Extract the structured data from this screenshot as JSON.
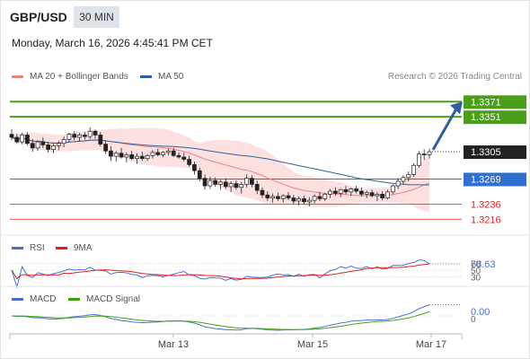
{
  "header": {
    "symbol": "GBP/USD",
    "timeframe": "30 MIN",
    "datetime": "Monday, March 16, 2026 4:45:41 PM CET",
    "credit": "Research © 2026 Trading Central"
  },
  "legends": {
    "bollinger": {
      "label": "MA 20 + Bollinger Bands",
      "color": "#f08080"
    },
    "ma50": {
      "label": "MA 50",
      "color": "#2f5f9f"
    },
    "rsi": {
      "label": "RSI",
      "color": "#4a6fd0"
    },
    "rsi_ma": {
      "label": "9MA",
      "color": "#e02020"
    },
    "macd": {
      "label": "MACD",
      "color": "#4a6fd0"
    },
    "macd_signal": {
      "label": "MACD Signal",
      "color": "#44a015"
    }
  },
  "price_levels": [
    {
      "label": "1.3371",
      "value": 1.3371,
      "kind": "resistance",
      "color": "#4a9e1a"
    },
    {
      "label": "1.3351",
      "value": 1.3351,
      "kind": "resistance",
      "color": "#4a9e1a"
    },
    {
      "label": "1.3305",
      "value": 1.3305,
      "kind": "current",
      "color": "#333333"
    },
    {
      "label": "1.3269",
      "value": 1.3269,
      "kind": "pivot",
      "color": "#2f6fcf"
    },
    {
      "label": "1.3236",
      "value": 1.3236,
      "kind": "support",
      "color": "#e02020"
    },
    {
      "label": "1.3216",
      "value": 1.3216,
      "kind": "support",
      "color": "#e02020"
    }
  ],
  "rsi_panel": {
    "value_label": "68.63",
    "value": 68.63,
    "level_70": "70",
    "level_50": "50",
    "level_30": "30"
  },
  "macd_panel": {
    "value_label": "0.00",
    "zero_label": "0"
  },
  "chart_data": {
    "type": "candlestick",
    "x_ticks": [
      "Mar 13",
      "Mar 15",
      "Mar 17"
    ],
    "ylim": [
      1.3195,
      1.3395
    ],
    "ohlc": [
      [
        1.3328,
        1.3335,
        1.332,
        1.3324
      ],
      [
        1.3324,
        1.3329,
        1.3316,
        1.3318
      ],
      [
        1.3318,
        1.333,
        1.3315,
        1.3327
      ],
      [
        1.3327,
        1.3331,
        1.3314,
        1.3316
      ],
      [
        1.3316,
        1.3322,
        1.3305,
        1.331
      ],
      [
        1.331,
        1.332,
        1.3306,
        1.3318
      ],
      [
        1.3318,
        1.3324,
        1.331,
        1.3314
      ],
      [
        1.3314,
        1.3318,
        1.3304,
        1.3308
      ],
      [
        1.3308,
        1.3316,
        1.3303,
        1.3313
      ],
      [
        1.3313,
        1.3319,
        1.3307,
        1.3316
      ],
      [
        1.3316,
        1.3325,
        1.3311,
        1.3321
      ],
      [
        1.3321,
        1.333,
        1.3318,
        1.3328
      ],
      [
        1.3328,
        1.3332,
        1.332,
        1.3324
      ],
      [
        1.3324,
        1.333,
        1.3319,
        1.3327
      ],
      [
        1.3327,
        1.3331,
        1.3321,
        1.3325
      ],
      [
        1.3325,
        1.3337,
        1.3322,
        1.3332
      ],
      [
        1.3332,
        1.3334,
        1.3322,
        1.3327
      ],
      [
        1.3327,
        1.3331,
        1.3312,
        1.3315
      ],
      [
        1.3315,
        1.332,
        1.3302,
        1.3306
      ],
      [
        1.3306,
        1.3312,
        1.3293,
        1.3299
      ],
      [
        1.3299,
        1.3306,
        1.3292,
        1.3303
      ],
      [
        1.3303,
        1.331,
        1.3296,
        1.3298
      ],
      [
        1.3298,
        1.3304,
        1.3291,
        1.3301
      ],
      [
        1.3301,
        1.3306,
        1.3294,
        1.3296
      ],
      [
        1.3296,
        1.3303,
        1.3289,
        1.3299
      ],
      [
        1.3299,
        1.3305,
        1.3293,
        1.3296
      ],
      [
        1.3296,
        1.3302,
        1.3293,
        1.33
      ],
      [
        1.33,
        1.3307,
        1.3296,
        1.3304
      ],
      [
        1.3304,
        1.3309,
        1.3299,
        1.3301
      ],
      [
        1.3301,
        1.3306,
        1.3298,
        1.3304
      ],
      [
        1.3304,
        1.3309,
        1.33,
        1.3306
      ],
      [
        1.3306,
        1.331,
        1.3298,
        1.33
      ],
      [
        1.33,
        1.3304,
        1.3296,
        1.3298
      ],
      [
        1.3298,
        1.3304,
        1.3292,
        1.3295
      ],
      [
        1.3295,
        1.33,
        1.3285,
        1.3288
      ],
      [
        1.3288,
        1.3292,
        1.3275,
        1.328
      ],
      [
        1.328,
        1.3284,
        1.3266,
        1.327
      ],
      [
        1.327,
        1.3275,
        1.3255,
        1.326
      ],
      [
        1.326,
        1.3272,
        1.3256,
        1.3267
      ],
      [
        1.3267,
        1.3271,
        1.3259,
        1.3262
      ],
      [
        1.3262,
        1.3268,
        1.3255,
        1.3265
      ],
      [
        1.3265,
        1.327,
        1.3256,
        1.3259
      ],
      [
        1.3259,
        1.3266,
        1.3252,
        1.3263
      ],
      [
        1.3263,
        1.3267,
        1.3255,
        1.3258
      ],
      [
        1.3258,
        1.3265,
        1.325,
        1.3262
      ],
      [
        1.3262,
        1.3275,
        1.3258,
        1.327
      ],
      [
        1.327,
        1.3274,
        1.3258,
        1.3262
      ],
      [
        1.3262,
        1.3267,
        1.3249,
        1.3254
      ],
      [
        1.3254,
        1.3258,
        1.3244,
        1.3248
      ],
      [
        1.3248,
        1.3253,
        1.324,
        1.3244
      ],
      [
        1.3244,
        1.325,
        1.3238,
        1.3246
      ],
      [
        1.3246,
        1.3251,
        1.324,
        1.3243
      ],
      [
        1.3243,
        1.3249,
        1.3238,
        1.3247
      ],
      [
        1.3247,
        1.3252,
        1.3241,
        1.3244
      ],
      [
        1.3244,
        1.3248,
        1.3236,
        1.324
      ],
      [
        1.324,
        1.3246,
        1.3234,
        1.3243
      ],
      [
        1.3243,
        1.3247,
        1.3236,
        1.3239
      ],
      [
        1.3239,
        1.3245,
        1.3233,
        1.3241
      ],
      [
        1.3241,
        1.3249,
        1.3237,
        1.3246
      ],
      [
        1.3246,
        1.3252,
        1.324,
        1.3243
      ],
      [
        1.3243,
        1.3251,
        1.324,
        1.3249
      ],
      [
        1.3249,
        1.3256,
        1.3244,
        1.3253
      ],
      [
        1.3253,
        1.3258,
        1.3247,
        1.325
      ],
      [
        1.325,
        1.3257,
        1.3245,
        1.3255
      ],
      [
        1.3255,
        1.326,
        1.3249,
        1.3252
      ],
      [
        1.3252,
        1.3258,
        1.3247,
        1.3256
      ],
      [
        1.3256,
        1.326,
        1.325,
        1.3253
      ],
      [
        1.3253,
        1.3258,
        1.3246,
        1.3249
      ],
      [
        1.3249,
        1.3254,
        1.3244,
        1.3251
      ],
      [
        1.3251,
        1.3255,
        1.3245,
        1.3247
      ],
      [
        1.3247,
        1.3252,
        1.324,
        1.3249
      ],
      [
        1.3249,
        1.3253,
        1.3241,
        1.3244
      ],
      [
        1.3244,
        1.3255,
        1.3242,
        1.3252
      ],
      [
        1.3252,
        1.3262,
        1.3249,
        1.326
      ],
      [
        1.326,
        1.327,
        1.3256,
        1.3266
      ],
      [
        1.3266,
        1.3274,
        1.3262,
        1.3271
      ],
      [
        1.3271,
        1.3279,
        1.3266,
        1.3275
      ],
      [
        1.3275,
        1.329,
        1.3272,
        1.3287
      ],
      [
        1.3287,
        1.3306,
        1.3284,
        1.3302
      ],
      [
        1.3302,
        1.3308,
        1.3294,
        1.3301
      ],
      [
        1.3301,
        1.3309,
        1.3296,
        1.3305
      ]
    ]
  }
}
